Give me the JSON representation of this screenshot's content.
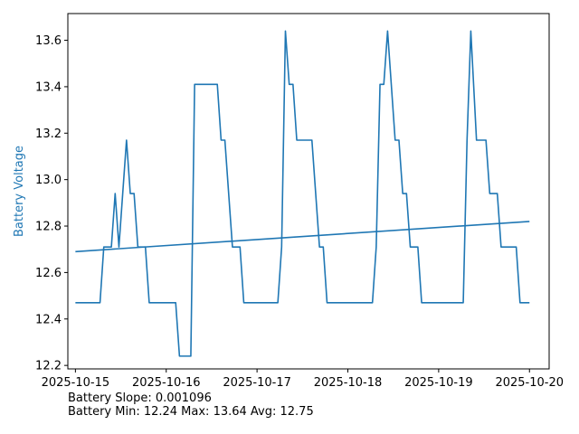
{
  "chart_data": {
    "type": "line",
    "title": "",
    "xlabel": "",
    "ylabel": "Battery Voltage",
    "xlim": [
      "2025-10-14T22:00",
      "2025-10-20T05:12"
    ],
    "ylim": [
      12.185,
      13.715
    ],
    "x_ticks": [
      "2025-10-15",
      "2025-10-16",
      "2025-10-17",
      "2025-10-18",
      "2025-10-19",
      "2025-10-20"
    ],
    "y_ticks": [
      "12.2",
      "12.4",
      "12.6",
      "12.8",
      "13.0",
      "13.2",
      "13.4",
      "13.6"
    ],
    "grid": false,
    "colors": {
      "series": "#1f77b4",
      "ylabel": "#1f77b4",
      "axes": "#000000"
    },
    "series": [
      {
        "points": [
          [
            "2025-10-15T00:00",
            12.47
          ],
          [
            "2025-10-15T06:30",
            12.47
          ],
          [
            "2025-10-15T07:30",
            12.71
          ],
          [
            "2025-10-15T09:30",
            12.71
          ],
          [
            "2025-10-15T10:30",
            12.94
          ],
          [
            "2025-10-15T11:30",
            12.71
          ],
          [
            "2025-10-15T12:30",
            12.94
          ],
          [
            "2025-10-15T13:30",
            13.17
          ],
          [
            "2025-10-15T14:30",
            12.94
          ],
          [
            "2025-10-15T15:30",
            12.94
          ],
          [
            "2025-10-15T16:30",
            12.71
          ],
          [
            "2025-10-15T18:30",
            12.71
          ],
          [
            "2025-10-15T19:30",
            12.47
          ],
          [
            "2025-10-16T02:30",
            12.47
          ],
          [
            "2025-10-16T03:30",
            12.24
          ],
          [
            "2025-10-16T06:30",
            12.24
          ],
          [
            "2025-10-16T07:30",
            13.41
          ],
          [
            "2025-10-16T13:30",
            13.41
          ],
          [
            "2025-10-16T14:30",
            13.17
          ],
          [
            "2025-10-16T15:30",
            13.17
          ],
          [
            "2025-10-16T17:30",
            12.71
          ],
          [
            "2025-10-16T19:30",
            12.71
          ],
          [
            "2025-10-16T20:30",
            12.47
          ],
          [
            "2025-10-17T05:30",
            12.47
          ],
          [
            "2025-10-17T06:30",
            12.71
          ],
          [
            "2025-10-17T07:30",
            13.64
          ],
          [
            "2025-10-17T08:30",
            13.41
          ],
          [
            "2025-10-17T09:30",
            13.41
          ],
          [
            "2025-10-17T10:30",
            13.17
          ],
          [
            "2025-10-17T14:30",
            13.17
          ],
          [
            "2025-10-17T16:30",
            12.71
          ],
          [
            "2025-10-17T17:30",
            12.71
          ],
          [
            "2025-10-17T18:30",
            12.47
          ],
          [
            "2025-10-18T06:30",
            12.47
          ],
          [
            "2025-10-18T07:30",
            12.71
          ],
          [
            "2025-10-18T08:30",
            13.41
          ],
          [
            "2025-10-18T09:30",
            13.41
          ],
          [
            "2025-10-18T10:30",
            13.64
          ],
          [
            "2025-10-18T12:30",
            13.17
          ],
          [
            "2025-10-18T13:30",
            13.17
          ],
          [
            "2025-10-18T14:30",
            12.94
          ],
          [
            "2025-10-18T15:30",
            12.94
          ],
          [
            "2025-10-18T16:30",
            12.71
          ],
          [
            "2025-10-18T18:30",
            12.71
          ],
          [
            "2025-10-18T19:30",
            12.47
          ],
          [
            "2025-10-19T06:30",
            12.47
          ],
          [
            "2025-10-19T07:30",
            13.17
          ],
          [
            "2025-10-19T08:30",
            13.64
          ],
          [
            "2025-10-19T10:00",
            13.17
          ],
          [
            "2025-10-19T12:30",
            13.17
          ],
          [
            "2025-10-19T13:30",
            12.94
          ],
          [
            "2025-10-19T15:30",
            12.94
          ],
          [
            "2025-10-19T16:30",
            12.71
          ],
          [
            "2025-10-19T20:30",
            12.71
          ],
          [
            "2025-10-19T21:30",
            12.47
          ],
          [
            "2025-10-20T00:00",
            12.47
          ]
        ]
      },
      {
        "points": [
          [
            "2025-10-15T00:00",
            12.69
          ],
          [
            "2025-10-20T00:00",
            12.82
          ]
        ]
      }
    ]
  },
  "stats": {
    "slope_line": "Battery Slope: 0.001096",
    "minmax_line": "Battery Min: 12.24 Max: 13.64 Avg: 12.75"
  }
}
